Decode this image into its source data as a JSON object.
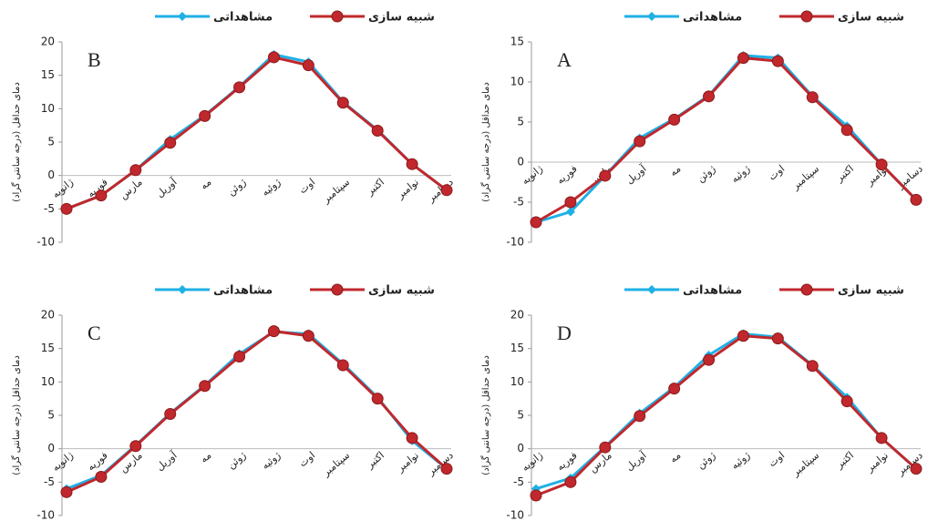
{
  "chart_data": [
    {
      "type": "line",
      "annotation": "B",
      "y_label": "دمای حداقل (درجه سانتی گراد)",
      "categories": [
        "ژانویه",
        "فوریه",
        "مارس",
        "آوریل",
        "مه",
        "ژوئن",
        "ژوئیه",
        "اوت",
        "سپتامبر",
        "اکتبر",
        "نوامبر",
        "دسامبر"
      ],
      "series": [
        {
          "name": "مشاهداتی",
          "color": "#1fb0e6",
          "marker": "diamond",
          "values": [
            -5,
            -3,
            0.8,
            5.4,
            9,
            13.3,
            18.1,
            17,
            11,
            6.8,
            1.7,
            -2.2
          ]
        },
        {
          "name": "شبیه سازی",
          "color": "#c0282d",
          "marker": "circle",
          "values": [
            -5,
            -3,
            0.8,
            4.9,
            8.9,
            13.2,
            17.7,
            16.5,
            10.9,
            6.7,
            1.7,
            -2.2
          ]
        }
      ],
      "ylim": [
        -10,
        20
      ],
      "yticks": [
        -10,
        -5,
        0,
        5,
        10,
        15,
        20
      ]
    },
    {
      "type": "line",
      "annotation": "A",
      "y_label": "دمای حداقل (درجه سانتی گراد)",
      "categories": [
        "ژانویه",
        "فوریه",
        "مارس",
        "آوریل",
        "مه",
        "ژوئن",
        "ژوئیه",
        "اوت",
        "سپتامبر",
        "اکتبر",
        "نوامبر",
        "دسامبر"
      ],
      "series": [
        {
          "name": "مشاهداتی",
          "color": "#1fb0e6",
          "marker": "diamond",
          "values": [
            -7.5,
            -6.2,
            -1.7,
            3,
            5.4,
            8.3,
            13.3,
            13,
            8.2,
            4.5,
            -0.3,
            -4.7
          ]
        },
        {
          "name": "شبیه سازی",
          "color": "#c0282d",
          "marker": "circle",
          "values": [
            -7.5,
            -5,
            -1.7,
            2.6,
            5.3,
            8.2,
            13,
            12.6,
            8.1,
            4,
            -0.3,
            -4.7
          ]
        }
      ],
      "ylim": [
        -10,
        15
      ],
      "yticks": [
        -10,
        -5,
        0,
        5,
        10,
        15
      ]
    },
    {
      "type": "line",
      "annotation": "C",
      "y_label": "دمای حداقل (درجه سانتی گراد)",
      "categories": [
        "ژانویه",
        "فوریه",
        "مارس",
        "آوریل",
        "مه",
        "ژوئن",
        "ژوئیه",
        "اوت",
        "سپتامبر",
        "اکتبر",
        "نوامبر",
        "دسامبر"
      ],
      "series": [
        {
          "name": "مشاهداتی",
          "color": "#1fb0e6",
          "marker": "diamond",
          "values": [
            -6,
            -4,
            0.5,
            5.3,
            9.5,
            14.2,
            17.5,
            17.2,
            12.7,
            7.7,
            1.2,
            -3
          ]
        },
        {
          "name": "شبیه سازی",
          "color": "#c0282d",
          "marker": "circle",
          "values": [
            -6.5,
            -4.2,
            0.4,
            5.2,
            9.4,
            13.8,
            17.6,
            16.9,
            12.5,
            7.5,
            1.6,
            -3
          ]
        }
      ],
      "ylim": [
        -10,
        20
      ],
      "yticks": [
        -10,
        -5,
        0,
        5,
        10,
        15,
        20
      ]
    },
    {
      "type": "line",
      "annotation": "D",
      "y_label": "دمای حداقل (درجه سانتی گراد)",
      "categories": [
        "ژانویه",
        "فوریه",
        "مارس",
        "آوریل",
        "مه",
        "ژوئن",
        "ژوئیه",
        "اوت",
        "سپتامبر",
        "اکتبر",
        "نوامبر",
        "دسامبر"
      ],
      "series": [
        {
          "name": "مشاهداتی",
          "color": "#1fb0e6",
          "marker": "diamond",
          "values": [
            -6,
            -4.4,
            0.3,
            5.3,
            9.2,
            14,
            17.2,
            16.7,
            12.5,
            7.7,
            1.6,
            -3
          ]
        },
        {
          "name": "شبیه سازی",
          "color": "#c0282d",
          "marker": "circle",
          "values": [
            -7,
            -5,
            0.2,
            4.9,
            9,
            13.3,
            16.9,
            16.5,
            12.4,
            7.1,
            1.6,
            -3
          ]
        }
      ],
      "ylim": [
        -10,
        20
      ],
      "yticks": [
        -10,
        -5,
        0,
        5,
        10,
        15,
        20
      ]
    }
  ]
}
